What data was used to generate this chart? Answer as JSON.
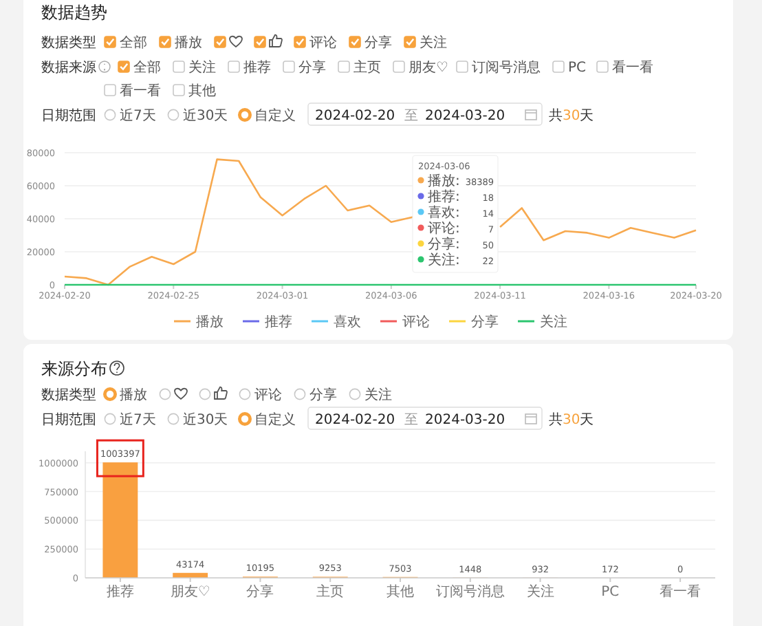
{
  "chart_data": [
    {
      "type": "line",
      "title": "数据趋势",
      "x": [
        "2024-02-20",
        "2024-02-21",
        "2024-02-22",
        "2024-02-23",
        "2024-02-24",
        "2024-02-25",
        "2024-02-26",
        "2024-02-27",
        "2024-02-28",
        "2024-02-29",
        "2024-03-01",
        "2024-03-02",
        "2024-03-03",
        "2024-03-04",
        "2024-03-05",
        "2024-03-06",
        "2024-03-07",
        "2024-03-08",
        "2024-03-09",
        "2024-03-10",
        "2024-03-11",
        "2024-03-12",
        "2024-03-13",
        "2024-03-14",
        "2024-03-15",
        "2024-03-16",
        "2024-03-17",
        "2024-03-18",
        "2024-03-19",
        "2024-03-20"
      ],
      "series": [
        {
          "name": "播放",
          "color": "#f7a94f",
          "values": [
            5000,
            4000,
            0,
            11000,
            17000,
            12500,
            20000,
            76000,
            75000,
            53000,
            42000,
            52000,
            60000,
            45000,
            48000,
            38000,
            41000,
            null,
            null,
            null,
            35000,
            46500,
            27000,
            32500,
            31500,
            28500,
            34500,
            31500,
            28500,
            33000
          ]
        },
        {
          "name": "推荐",
          "color": "#6a6ae8",
          "values": [
            null,
            null,
            null,
            null,
            null,
            null,
            null,
            null,
            null,
            null,
            null,
            null,
            null,
            null,
            null,
            null,
            null,
            null,
            null,
            null,
            null,
            null,
            null,
            null,
            null,
            null,
            null,
            null,
            null,
            null
          ]
        },
        {
          "name": "喜欢",
          "color": "#5bc8f5",
          "values": [
            null,
            null,
            null,
            null,
            null,
            null,
            null,
            null,
            null,
            null,
            null,
            null,
            null,
            null,
            null,
            null,
            null,
            null,
            null,
            null,
            null,
            null,
            null,
            null,
            null,
            null,
            null,
            null,
            null,
            null
          ]
        },
        {
          "name": "评论",
          "color": "#f15b5b",
          "values": [
            null,
            null,
            null,
            null,
            null,
            null,
            null,
            null,
            null,
            null,
            null,
            null,
            null,
            null,
            null,
            null,
            null,
            null,
            null,
            null,
            null,
            null,
            null,
            null,
            null,
            null,
            null,
            null,
            null,
            null
          ]
        },
        {
          "name": "分享",
          "color": "#fcd53f",
          "values": [
            null,
            null,
            null,
            null,
            null,
            null,
            null,
            null,
            null,
            null,
            null,
            null,
            null,
            null,
            null,
            null,
            null,
            null,
            null,
            null,
            null,
            null,
            null,
            null,
            null,
            null,
            null,
            null,
            null,
            null
          ]
        },
        {
          "name": "关注",
          "color": "#2cc56f",
          "values": [
            0,
            0,
            0,
            0,
            0,
            0,
            0,
            0,
            0,
            0,
            0,
            0,
            0,
            0,
            0,
            0,
            0,
            0,
            0,
            0,
            0,
            0,
            0,
            0,
            0,
            0,
            0,
            0,
            0,
            0
          ]
        }
      ],
      "xlim": [
        "2024-02-20",
        "2024-03-20"
      ],
      "xticks": [
        "2024-02-20",
        "2024-02-25",
        "2024-03-01",
        "2024-03-06",
        "2024-03-11",
        "2024-03-16",
        "2024-03-20"
      ],
      "ylim": [
        0,
        80000
      ],
      "yticks": [
        0,
        20000,
        40000,
        60000,
        80000
      ],
      "grid": "y",
      "legend": "bottom",
      "annotations": [
        "数据类型",
        "全部",
        "播放",
        "评论",
        "分享",
        "关注",
        "数据来源",
        "全部",
        "关注",
        "推荐",
        "分享",
        "主页",
        "朋友♡",
        "订阅号消息",
        "PC",
        "看一看",
        "看一看",
        "其他",
        "日期范围",
        "近7天",
        "近30天",
        "自定义",
        "2024-02-20",
        "至",
        "2024-03-20",
        "共30天",
        "2024-03-06",
        "播放:",
        "38389",
        "推荐:",
        "18",
        "喜欢:",
        "14",
        "评论:",
        "7",
        "分享:",
        "50",
        "关注:",
        "22"
      ]
    },
    {
      "type": "bar",
      "title": "来源分布",
      "categories": [
        "推荐",
        "朋友♡",
        "分享",
        "主页",
        "其他",
        "订阅号消息",
        "关注",
        "PC",
        "看一看"
      ],
      "values": [
        1003397,
        43174,
        10195,
        9253,
        7503,
        1448,
        932,
        172,
        0
      ],
      "color": "#f9a040",
      "ylim": [
        0,
        1100000
      ],
      "yticks": [
        0,
        250000,
        500000,
        750000,
        1000000
      ],
      "grid": "y",
      "data_labels": true,
      "annotations": [
        "数据类型",
        "播放",
        "评论",
        "分享",
        "关注",
        "日期范围",
        "近7天",
        "近30天",
        "自定义",
        "2024-02-20",
        "至",
        "2024-03-20",
        "共30天"
      ]
    }
  ]
}
